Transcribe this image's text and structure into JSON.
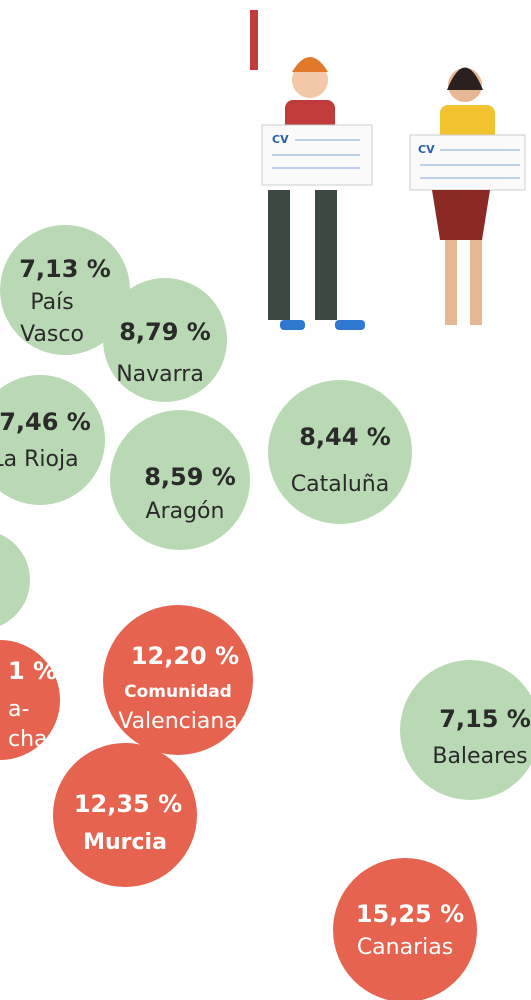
{
  "illustration": {
    "cards": [
      "CV",
      "CV"
    ]
  },
  "bubbles": [
    {
      "value": "7,13 %",
      "region": [
        "País",
        "Vasco"
      ],
      "kind": "green"
    },
    {
      "value": "8,79 %",
      "region": [
        "Navarra"
      ],
      "kind": "green"
    },
    {
      "value": "7,46 %",
      "region": [
        "La Rioja"
      ],
      "kind": "green"
    },
    {
      "value": "8,59 %",
      "region": [
        "Aragón"
      ],
      "kind": "green"
    },
    {
      "value": "8,44 %",
      "region": [
        "Cataluña"
      ],
      "kind": "green"
    },
    {
      "value": "1 %",
      "region": [
        "a-",
        "cha"
      ],
      "kind": "red"
    },
    {
      "value": "12,20 %",
      "region": [
        "Comunidad",
        "Valenciana"
      ],
      "kind": "red"
    },
    {
      "value": "12,35 %",
      "region": [
        "Murcia"
      ],
      "kind": "red"
    },
    {
      "value": "7,15 %",
      "region": [
        "Baleares"
      ],
      "kind": "green"
    },
    {
      "value": "15,25 %",
      "region": [
        "Canarias"
      ],
      "kind": "red"
    }
  ]
}
